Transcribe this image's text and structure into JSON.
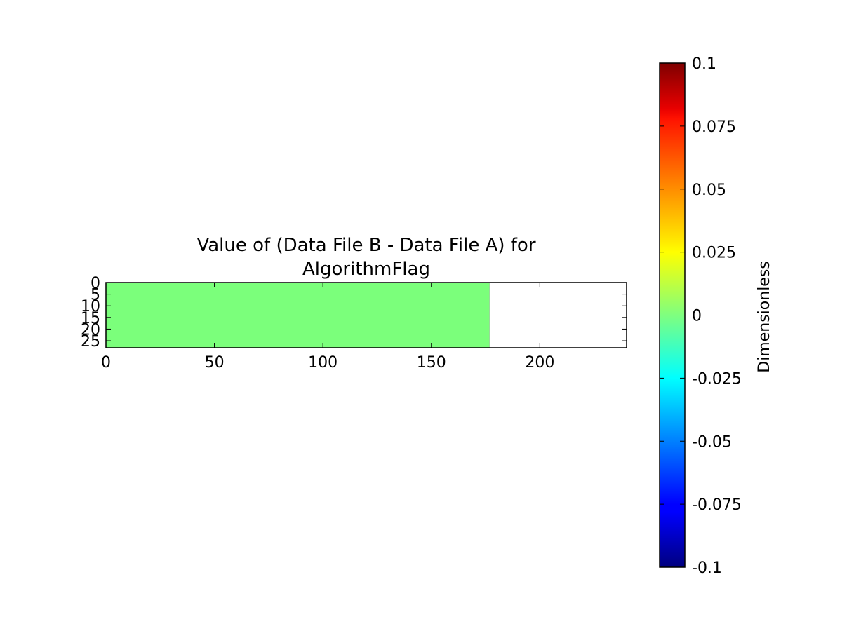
{
  "chart_data": {
    "type": "heatmap",
    "title_lines": [
      "Value of (Data File B - Data File A) for",
      "AlgorithmFlag"
    ],
    "xlim": [
      0,
      240
    ],
    "ylim": [
      28,
      0
    ],
    "x_ticks": [
      0,
      50,
      100,
      150,
      200
    ],
    "y_ticks": [
      0,
      5,
      10,
      15,
      20,
      25
    ],
    "x_tick_labels": [
      "0",
      "50",
      "100",
      "150",
      "200"
    ],
    "y_tick_labels": [
      "0",
      "5",
      "10",
      "15",
      "20",
      "25"
    ],
    "data_regions": [
      {
        "x_range": [
          0,
          177
        ],
        "y_range": [
          0,
          30
        ],
        "value": 0
      }
    ],
    "colorbar": {
      "colormap": "jet",
      "range": [
        -0.1,
        0.1
      ],
      "ticks": [
        0.1,
        0.075,
        0.05,
        0.025,
        0,
        -0.025,
        -0.05,
        -0.075,
        -0.1
      ],
      "tick_labels": [
        "0.1",
        "0.075",
        "0.05",
        "0.025",
        "0",
        "-0.025",
        "-0.05",
        "-0.075",
        "-0.1"
      ],
      "label": "Dimensionless"
    }
  }
}
